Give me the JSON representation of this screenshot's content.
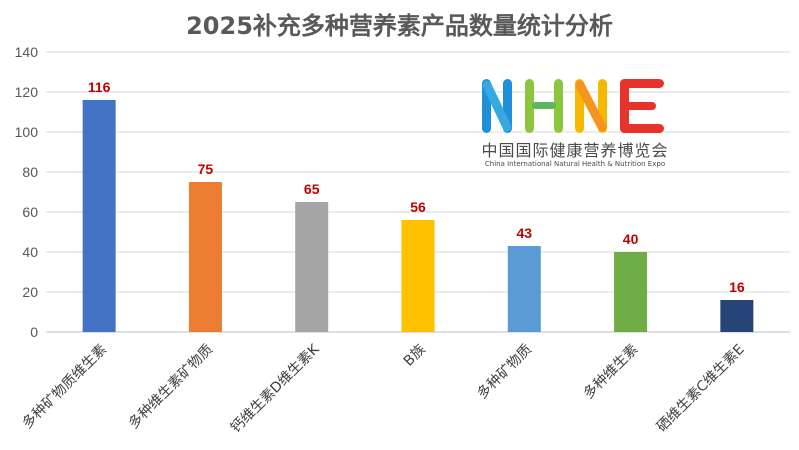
{
  "chart_data": {
    "type": "bar",
    "title": "2025补充多种营养素产品数量统计分析",
    "categories": [
      "多种矿物质维生素",
      "多种维生素矿物质",
      "钙维生素D维生素K",
      "B族",
      "多种矿物质",
      "多种维生素",
      "硒维生素C维生素E"
    ],
    "values": [
      116,
      75,
      65,
      56,
      43,
      40,
      16
    ],
    "colors": [
      "#4472C4",
      "#ED7D31",
      "#A5A5A5",
      "#FFC000",
      "#5B9BD5",
      "#70AD47",
      "#264478"
    ],
    "ylim": [
      0,
      140
    ],
    "yticks": [
      0,
      20,
      40,
      60,
      80,
      100,
      120,
      140
    ],
    "grid": true,
    "data_label_color": "#C00000"
  },
  "logo": {
    "wordmark": "NHNE",
    "cn": "中国国际健康营养博览会",
    "en": "China International Natural Health & Nutrition Expo"
  }
}
